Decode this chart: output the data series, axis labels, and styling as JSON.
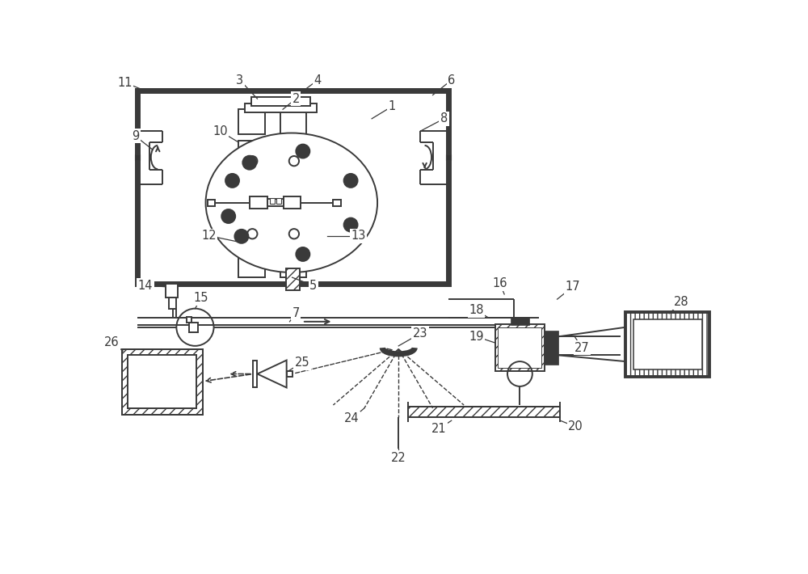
{
  "bg": "#ffffff",
  "lc": "#3a3a3a",
  "lw": 1.4,
  "lw_thick": 5.0,
  "fs": 10.5,
  "fig_w": 10.0,
  "fig_h": 7.1
}
